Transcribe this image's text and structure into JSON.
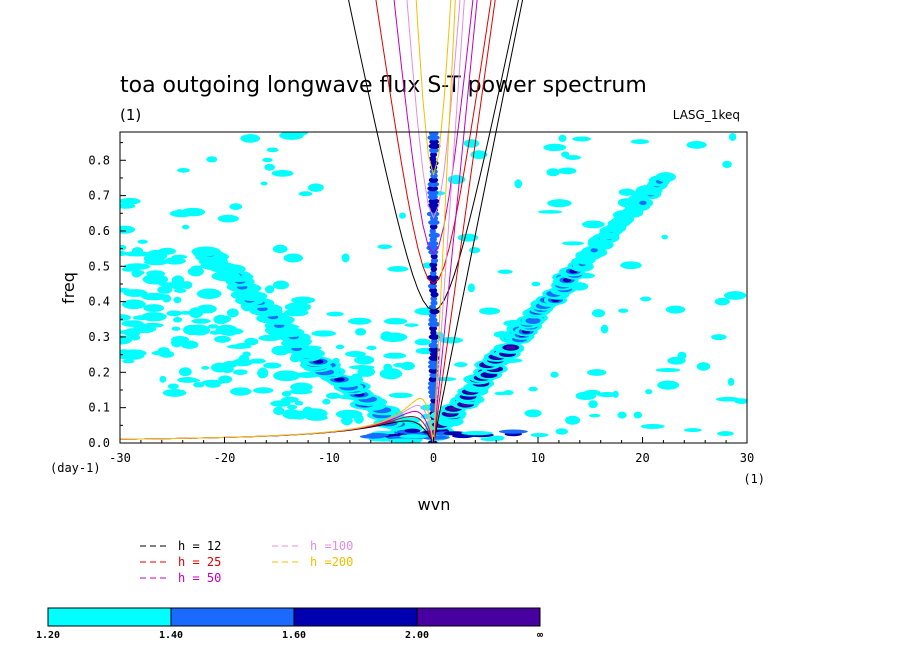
{
  "chart_data": {
    "type": "heatmap",
    "title": "toa outgoing longwave flux S-T power spectrum",
    "subtitle": "(1)",
    "dataset_label": "LASG_1keq",
    "xlabel": "wvn",
    "ylabel": "freq",
    "x_unit": "(1)",
    "y_unit": "(day-1)",
    "xlim": [
      -30,
      30
    ],
    "ylim": [
      0,
      0.88
    ],
    "x_ticks": [
      "-30",
      "-20",
      "-10",
      "0",
      "10",
      "20",
      "30"
    ],
    "y_ticks": [
      "0.0",
      "0.1",
      "0.2",
      "0.3",
      "0.4",
      "0.5",
      "0.6",
      "0.7",
      "0.8"
    ],
    "dispersion_curves": [
      {
        "name": "h = 12",
        "h": 12,
        "color": "#000000"
      },
      {
        "name": "h = 25",
        "h": 25,
        "color": "#e00000"
      },
      {
        "name": "h = 50",
        "h": 50,
        "color": "#c000c0"
      },
      {
        "name": "h =100",
        "h": 100,
        "color": "#e090e0"
      },
      {
        "name": "h =200",
        "h": 200,
        "color": "#f0c000"
      }
    ],
    "colorbar": {
      "labels": [
        "1.20",
        "1.40",
        "1.60",
        "2.00",
        "∞"
      ],
      "colors": [
        "#00ffff",
        "#1a6aff",
        "#0000b0",
        "#4800a0"
      ]
    },
    "spectral_features": [
      {
        "k": 0,
        "f0": 0.0,
        "f1": 0.88,
        "level": 2,
        "width": 0.5
      },
      {
        "k0": 0,
        "f0": 0.02,
        "k1": 8,
        "f1": 0.3,
        "level": 3,
        "width": 0.9
      },
      {
        "k0": 8,
        "f0": 0.3,
        "k1": 14,
        "f1": 0.5,
        "level": 2,
        "width": 0.8
      },
      {
        "k0": 14,
        "f0": 0.5,
        "k1": 22,
        "f1": 0.75,
        "level": 1,
        "width": 0.7
      },
      {
        "k0": -2,
        "f0": 0.02,
        "k1": -12,
        "f1": 0.25,
        "level": 2,
        "width": 1.0
      },
      {
        "k0": -12,
        "f0": 0.25,
        "k1": -22,
        "f1": 0.55,
        "level": 1,
        "width": 1.0
      }
    ]
  }
}
